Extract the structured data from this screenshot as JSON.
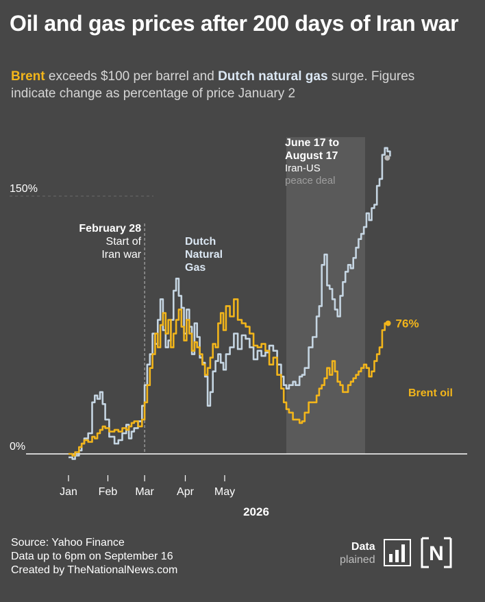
{
  "title": "Oil and gas prices after 200 days of Iran war",
  "subtitle": {
    "brent_word": "Brent",
    "part1": " exceeds $100 per barrel and ",
    "gas_word": "Dutch natural gas",
    "part2": " surge. Figures indicate change as percentage of price January 2"
  },
  "footer": {
    "source": "Source: Yahoo Finance",
    "data_note": "Data up to 6pm on September 16",
    "created_by": "Created by TheNationalNews.com"
  },
  "logos": {
    "data_explained_line1": "Data",
    "data_explained_line2": "plained",
    "national_mark": "N"
  },
  "colors": {
    "background": "#474747",
    "brent": "#f2b51b",
    "gas": "#c5d5e2",
    "shade": "#5a5a5a",
    "baseline": "#ffffff",
    "grid": "#6b6b6b"
  },
  "chart_data": {
    "type": "line",
    "title": "Oil and gas prices after 200 days of Iran war",
    "xlabel": "2026",
    "ylabel": "",
    "x_unit": "days since January 2, 2026",
    "x_ticks": [
      {
        "day": 0,
        "label": "Jan"
      },
      {
        "day": 30,
        "label": "Feb"
      },
      {
        "day": 58,
        "label": "Mar"
      },
      {
        "day": 89,
        "label": "Apr"
      },
      {
        "day": 119,
        "label": "May"
      }
    ],
    "xlim": [
      0,
      285
    ],
    "ylim": [
      -5,
      190
    ],
    "y_ticks": [
      {
        "value": 0,
        "label": "0%"
      },
      {
        "value": 150,
        "label": "150%"
      }
    ],
    "grid": false,
    "series": [
      {
        "name": "Dutch Natural Gas",
        "label_lines": [
          "Dutch",
          "Natural",
          "Gas"
        ],
        "values": [
          [
            0,
            -2
          ],
          [
            3,
            -3
          ],
          [
            5,
            -1
          ],
          [
            8,
            2
          ],
          [
            10,
            6
          ],
          [
            12,
            9
          ],
          [
            15,
            12
          ],
          [
            18,
            30
          ],
          [
            20,
            34
          ],
          [
            22,
            32
          ],
          [
            24,
            36
          ],
          [
            26,
            29
          ],
          [
            28,
            20
          ],
          [
            31,
            10
          ],
          [
            35,
            6
          ],
          [
            38,
            8
          ],
          [
            41,
            12
          ],
          [
            44,
            17
          ],
          [
            46,
            9
          ],
          [
            48,
            13
          ],
          [
            50,
            15
          ],
          [
            53,
            19
          ],
          [
            56,
            28
          ],
          [
            58,
            40
          ],
          [
            60,
            52
          ],
          [
            62,
            58
          ],
          [
            64,
            70
          ],
          [
            66,
            64
          ],
          [
            68,
            78
          ],
          [
            70,
            90
          ],
          [
            72,
            72
          ],
          [
            74,
            62
          ],
          [
            76,
            66
          ],
          [
            78,
            78
          ],
          [
            80,
            95
          ],
          [
            82,
            102
          ],
          [
            84,
            92
          ],
          [
            86,
            85
          ],
          [
            88,
            70
          ],
          [
            90,
            84
          ],
          [
            92,
            74
          ],
          [
            94,
            58
          ],
          [
            96,
            76
          ],
          [
            98,
            68
          ],
          [
            100,
            56
          ],
          [
            102,
            53
          ],
          [
            104,
            45
          ],
          [
            106,
            28
          ],
          [
            108,
            36
          ],
          [
            110,
            48
          ],
          [
            112,
            54
          ],
          [
            114,
            58
          ],
          [
            116,
            53
          ],
          [
            118,
            49
          ],
          [
            120,
            58
          ],
          [
            123,
            62
          ],
          [
            126,
            70
          ],
          [
            129,
            61
          ],
          [
            132,
            69
          ],
          [
            135,
            67
          ],
          [
            138,
            62
          ],
          [
            141,
            55
          ],
          [
            144,
            60
          ],
          [
            147,
            57
          ],
          [
            150,
            59
          ],
          [
            153,
            63
          ],
          [
            156,
            60
          ],
          [
            159,
            52
          ],
          [
            162,
            45
          ],
          [
            164,
            40
          ],
          [
            166,
            38
          ],
          [
            168,
            40
          ],
          [
            171,
            42
          ],
          [
            173,
            40
          ],
          [
            176,
            45
          ],
          [
            178,
            46
          ],
          [
            180,
            50
          ],
          [
            183,
            62
          ],
          [
            186,
            68
          ],
          [
            189,
            80
          ],
          [
            191,
            86
          ],
          [
            193,
            110
          ],
          [
            195,
            116
          ],
          [
            197,
            98
          ],
          [
            199,
            96
          ],
          [
            201,
            90
          ],
          [
            203,
            84
          ],
          [
            205,
            80
          ],
          [
            207,
            92
          ],
          [
            209,
            100
          ],
          [
            211,
            106
          ],
          [
            213,
            110
          ],
          [
            215,
            108
          ],
          [
            217,
            114
          ],
          [
            219,
            120
          ],
          [
            221,
            125
          ],
          [
            223,
            128
          ],
          [
            225,
            132
          ],
          [
            227,
            140
          ],
          [
            229,
            136
          ],
          [
            231,
            143
          ],
          [
            233,
            145
          ],
          [
            235,
            156
          ],
          [
            237,
            160
          ],
          [
            239,
            174
          ],
          [
            241,
            178
          ],
          [
            243,
            176
          ],
          [
            245,
            173
          ]
        ]
      },
      {
        "name": "Brent oil",
        "end_label": "76%",
        "values": [
          [
            0,
            0
          ],
          [
            3,
            -1
          ],
          [
            5,
            1
          ],
          [
            8,
            4
          ],
          [
            10,
            6
          ],
          [
            12,
            8
          ],
          [
            15,
            7
          ],
          [
            18,
            10
          ],
          [
            20,
            9
          ],
          [
            22,
            12
          ],
          [
            24,
            14
          ],
          [
            26,
            16
          ],
          [
            28,
            15
          ],
          [
            31,
            13
          ],
          [
            35,
            14
          ],
          [
            38,
            13
          ],
          [
            41,
            15
          ],
          [
            44,
            14
          ],
          [
            46,
            16
          ],
          [
            48,
            18
          ],
          [
            50,
            19
          ],
          [
            53,
            16
          ],
          [
            56,
            20
          ],
          [
            58,
            30
          ],
          [
            60,
            40
          ],
          [
            62,
            50
          ],
          [
            64,
            58
          ],
          [
            66,
            70
          ],
          [
            68,
            62
          ],
          [
            70,
            75
          ],
          [
            72,
            82
          ],
          [
            74,
            70
          ],
          [
            76,
            78
          ],
          [
            78,
            62
          ],
          [
            80,
            70
          ],
          [
            82,
            78
          ],
          [
            84,
            84
          ],
          [
            86,
            74
          ],
          [
            88,
            66
          ],
          [
            90,
            78
          ],
          [
            92,
            70
          ],
          [
            94,
            60
          ],
          [
            96,
            65
          ],
          [
            98,
            62
          ],
          [
            100,
            58
          ],
          [
            102,
            52
          ],
          [
            104,
            46
          ],
          [
            106,
            50
          ],
          [
            108,
            56
          ],
          [
            110,
            64
          ],
          [
            112,
            62
          ],
          [
            114,
            76
          ],
          [
            116,
            82
          ],
          [
            118,
            72
          ],
          [
            120,
            86
          ],
          [
            123,
            80
          ],
          [
            126,
            90
          ],
          [
            129,
            78
          ],
          [
            132,
            76
          ],
          [
            135,
            74
          ],
          [
            138,
            70
          ],
          [
            141,
            63
          ],
          [
            144,
            62
          ],
          [
            147,
            64
          ],
          [
            150,
            60
          ],
          [
            153,
            52
          ],
          [
            156,
            56
          ],
          [
            159,
            46
          ],
          [
            162,
            38
          ],
          [
            164,
            30
          ],
          [
            166,
            26
          ],
          [
            168,
            24
          ],
          [
            171,
            20
          ],
          [
            173,
            20
          ],
          [
            176,
            18
          ],
          [
            178,
            19
          ],
          [
            180,
            24
          ],
          [
            183,
            30
          ],
          [
            186,
            30
          ],
          [
            189,
            34
          ],
          [
            191,
            38
          ],
          [
            193,
            40
          ],
          [
            195,
            44
          ],
          [
            197,
            50
          ],
          [
            199,
            46
          ],
          [
            201,
            54
          ],
          [
            203,
            48
          ],
          [
            205,
            42
          ],
          [
            207,
            40
          ],
          [
            209,
            36
          ],
          [
            211,
            36
          ],
          [
            213,
            40
          ],
          [
            215,
            42
          ],
          [
            217,
            44
          ],
          [
            219,
            46
          ],
          [
            221,
            48
          ],
          [
            223,
            50
          ],
          [
            225,
            52
          ],
          [
            227,
            50
          ],
          [
            229,
            45
          ],
          [
            231,
            48
          ],
          [
            233,
            54
          ],
          [
            235,
            58
          ],
          [
            237,
            62
          ],
          [
            239,
            72
          ],
          [
            241,
            76
          ],
          [
            243,
            76
          ]
        ]
      }
    ],
    "shaded_periods": [
      {
        "start_day": 166,
        "end_day": 226,
        "label_bold": [
          "June 17 to",
          "August 17"
        ],
        "label": [
          "Iran-US",
          "peace deal"
        ]
      }
    ],
    "annotations": [
      {
        "day": 58,
        "label_bold": "February 28",
        "label": [
          "Start of",
          "Iran war"
        ]
      }
    ]
  }
}
